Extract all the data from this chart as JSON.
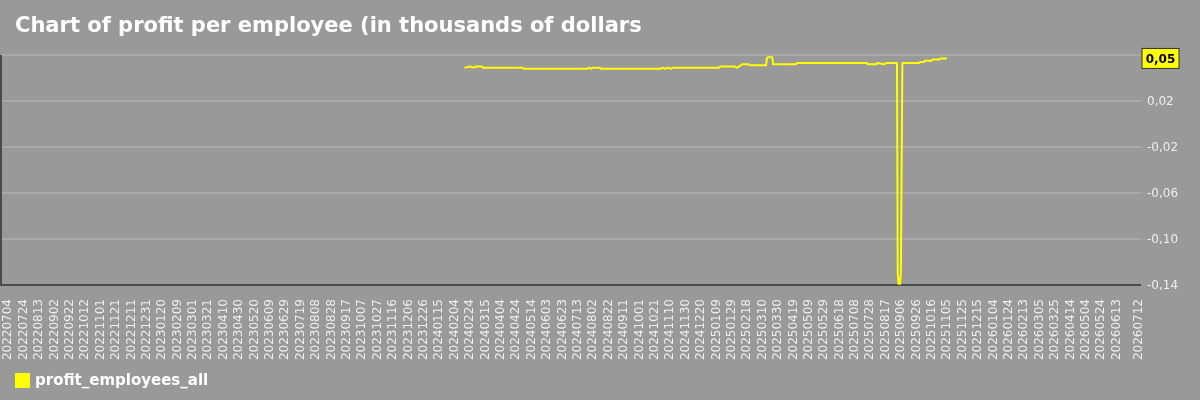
{
  "chart_data": {
    "type": "line",
    "title": "Chart of profit per employee (in thousands of dollars",
    "x": [
      "2024-02-19",
      "2024-02-25",
      "2024-03-01",
      "2024-03-04",
      "2024-03-12",
      "2024-03-13",
      "2024-05-04",
      "2024-05-05",
      "2024-07-26",
      "2024-07-29",
      "2024-07-31",
      "2024-08-03",
      "2024-08-12",
      "2024-08-13",
      "2024-10-30",
      "2024-11-02",
      "2024-11-05",
      "2024-11-08",
      "2024-11-12",
      "2024-11-15",
      "2025-01-14",
      "2025-01-15",
      "2025-02-03",
      "2025-02-06",
      "2025-02-09",
      "2025-02-13",
      "2025-02-22",
      "2025-02-23",
      "2025-03-16",
      "2025-03-17",
      "2025-03-18",
      "2025-03-24",
      "2025-03-25",
      "2025-04-24",
      "2025-04-25",
      "2025-07-25",
      "2025-07-26",
      "2025-08-06",
      "2025-08-07",
      "2025-08-17",
      "2025-08-19",
      "2025-09-02",
      "2025-09-03",
      "2025-09-04",
      "2025-09-05",
      "2025-09-06",
      "2025-09-07",
      "2025-09-09",
      "2025-10-01",
      "2025-10-02",
      "2025-10-07",
      "2025-10-08",
      "2025-10-17",
      "2025-10-18",
      "2025-10-27",
      "2025-10-28",
      "2025-11-05"
    ],
    "series": [
      {
        "name": "profit_employees_all",
        "color": "#ffff00",
        "values": [
          0.049,
          0.05,
          0.049,
          0.05,
          0.05,
          0.049,
          0.049,
          0.048,
          0.048,
          0.049,
          0.048,
          0.049,
          0.049,
          0.048,
          0.048,
          0.049,
          0.048,
          0.049,
          0.048,
          0.049,
          0.049,
          0.05,
          0.05,
          0.049,
          0.05,
          0.052,
          0.052,
          0.051,
          0.051,
          0.057,
          0.058,
          0.058,
          0.052,
          0.052,
          0.053,
          0.053,
          0.052,
          0.052,
          0.053,
          0.052,
          0.053,
          0.053,
          -0.13,
          -0.139,
          -0.134,
          -0.139,
          -0.13,
          0.053,
          0.053,
          0.054,
          0.054,
          0.055,
          0.055,
          0.056,
          0.056,
          0.057,
          0.057
        ]
      }
    ],
    "xlim": [
      "2022-06-26",
      "2026-07-16"
    ],
    "xticks": [
      {
        "value": "2022-07-04",
        "label": "20220704"
      },
      {
        "value": "2022-07-24",
        "label": "20220724"
      },
      {
        "value": "2022-08-13",
        "label": "20220813"
      },
      {
        "value": "2022-09-02",
        "label": "20220902"
      },
      {
        "value": "2022-09-22",
        "label": "20220922"
      },
      {
        "value": "2022-10-12",
        "label": "20221012"
      },
      {
        "value": "2022-11-01",
        "label": "20221101"
      },
      {
        "value": "2022-11-21",
        "label": "20221121"
      },
      {
        "value": "2022-12-11",
        "label": "20221211"
      },
      {
        "value": "2022-12-31",
        "label": "20221231"
      },
      {
        "value": "2023-01-20",
        "label": "20230120"
      },
      {
        "value": "2023-02-09",
        "label": "20230209"
      },
      {
        "value": "2023-03-01",
        "label": "20230301"
      },
      {
        "value": "2023-03-21",
        "label": "20230321"
      },
      {
        "value": "2023-04-10",
        "label": "20230410"
      },
      {
        "value": "2023-04-30",
        "label": "20230430"
      },
      {
        "value": "2023-05-20",
        "label": "20230520"
      },
      {
        "value": "2023-06-09",
        "label": "20230609"
      },
      {
        "value": "2023-06-29",
        "label": "20230629"
      },
      {
        "value": "2023-07-19",
        "label": "20230719"
      },
      {
        "value": "2023-08-08",
        "label": "20230808"
      },
      {
        "value": "2023-08-28",
        "label": "20230828"
      },
      {
        "value": "2023-09-17",
        "label": "20230917"
      },
      {
        "value": "2023-10-07",
        "label": "20231007"
      },
      {
        "value": "2023-10-27",
        "label": "20231027"
      },
      {
        "value": "2023-11-16",
        "label": "20231116"
      },
      {
        "value": "2023-12-06",
        "label": "20231206"
      },
      {
        "value": "2023-12-26",
        "label": "20231226"
      },
      {
        "value": "2024-01-15",
        "label": "20240115"
      },
      {
        "value": "2024-02-04",
        "label": "20240204"
      },
      {
        "value": "2024-02-24",
        "label": "20240224"
      },
      {
        "value": "2024-03-15",
        "label": "20240315"
      },
      {
        "value": "2024-04-04",
        "label": "20240404"
      },
      {
        "value": "2024-04-24",
        "label": "20240424"
      },
      {
        "value": "2024-05-14",
        "label": "20240514"
      },
      {
        "value": "2024-06-03",
        "label": "20240603"
      },
      {
        "value": "2024-06-23",
        "label": "20240623"
      },
      {
        "value": "2024-07-13",
        "label": "20240713"
      },
      {
        "value": "2024-08-02",
        "label": "20240802"
      },
      {
        "value": "2024-08-22",
        "label": "20240822"
      },
      {
        "value": "2024-09-11",
        "label": "20240911"
      },
      {
        "value": "2024-10-01",
        "label": "20241001"
      },
      {
        "value": "2024-10-21",
        "label": "20241021"
      },
      {
        "value": "2024-11-10",
        "label": "20241110"
      },
      {
        "value": "2024-11-30",
        "label": "20241130"
      },
      {
        "value": "2024-12-20",
        "label": "20241220"
      },
      {
        "value": "2025-01-09",
        "label": "20250109"
      },
      {
        "value": "2025-01-29",
        "label": "20250129"
      },
      {
        "value": "2025-02-18",
        "label": "20250218"
      },
      {
        "value": "2025-03-10",
        "label": "20250310"
      },
      {
        "value": "2025-03-30",
        "label": "20250330"
      },
      {
        "value": "2025-04-19",
        "label": "20250419"
      },
      {
        "value": "2025-05-09",
        "label": "20250509"
      },
      {
        "value": "2025-05-29",
        "label": "20250529"
      },
      {
        "value": "2025-06-18",
        "label": "20250618"
      },
      {
        "value": "2025-07-08",
        "label": "20250708"
      },
      {
        "value": "2025-07-28",
        "label": "20250728"
      },
      {
        "value": "2025-08-17",
        "label": "20250817"
      },
      {
        "value": "2025-09-06",
        "label": "20250906"
      },
      {
        "value": "2025-09-26",
        "label": "20250926"
      },
      {
        "value": "2025-10-16",
        "label": "20251016"
      },
      {
        "value": "2025-11-05",
        "label": "20251105"
      },
      {
        "value": "2025-11-25",
        "label": "20251125"
      },
      {
        "value": "2025-12-15",
        "label": "20251215"
      },
      {
        "value": "2026-01-04",
        "label": "20260104"
      },
      {
        "value": "2026-01-24",
        "label": "20260124"
      },
      {
        "value": "2026-02-13",
        "label": "20260213"
      },
      {
        "value": "2026-03-05",
        "label": "20260305"
      },
      {
        "value": "2026-03-25",
        "label": "20260325"
      },
      {
        "value": "2026-04-14",
        "label": "20260414"
      },
      {
        "value": "2026-05-04",
        "label": "20260504"
      },
      {
        "value": "2026-05-24",
        "label": "20260524"
      },
      {
        "value": "2026-06-13",
        "label": "20260613"
      },
      {
        "value": "2026-07-12",
        "label": "20260712"
      }
    ],
    "ylim": [
      -0.14,
      0.06
    ],
    "yticks": [
      {
        "value": 0.06,
        "label": null
      },
      {
        "value": 0.02,
        "label": "0,02"
      },
      {
        "value": -0.02,
        "label": "-0,02"
      },
      {
        "value": -0.06,
        "label": "-0,06"
      },
      {
        "value": -0.1,
        "label": "-0,10"
      },
      {
        "value": -0.14,
        "label": "-0,14"
      }
    ],
    "grid": "y",
    "legend": "bottom left",
    "annotations": [
      {
        "text": "0,05",
        "y": 0.057
      }
    ]
  }
}
